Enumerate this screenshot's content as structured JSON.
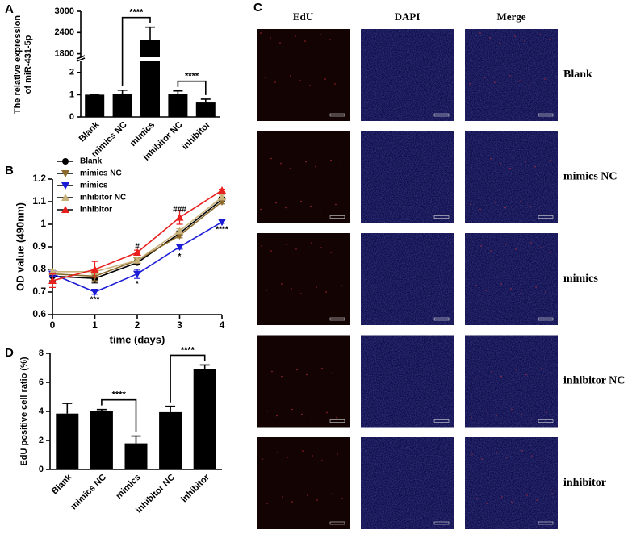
{
  "panels": [
    "A",
    "B",
    "C",
    "D"
  ],
  "chart_data": [
    {
      "type": "broken-bar",
      "ylabel": [
        "The relative expression",
        "of miR-431-5p"
      ],
      "categories": [
        "Blank",
        "mimics NC",
        "mimics",
        "inhibitor NC",
        "inhibitor"
      ],
      "values": [
        1,
        1.05,
        2200,
        1.05,
        0.65
      ],
      "errors": [
        0,
        0.15,
        350,
        0.12,
        0.15
      ],
      "color": "#000000",
      "y_segments": [
        [
          0,
          2.5
        ],
        [
          1700,
          3000
        ]
      ],
      "yticks": [
        0,
        1,
        2,
        1800,
        2400,
        3000
      ],
      "significance": [
        {
          "between": [
            "mimics NC",
            "mimics"
          ],
          "text": "****"
        },
        {
          "between": [
            "inhibitor NC",
            "inhibitor"
          ],
          "text": "****"
        }
      ]
    },
    {
      "type": "line",
      "xlabel": "time (days)",
      "ylabel": "OD value (490nm)",
      "x": [
        0,
        1,
        2,
        3,
        4
      ],
      "xlim": [
        0,
        4
      ],
      "xticks": [
        0,
        1,
        2,
        3,
        4
      ],
      "ylim": [
        0.6,
        1.2
      ],
      "yticks": [
        0.6,
        0.7,
        0.8,
        0.9,
        1.0,
        1.1,
        1.2
      ],
      "legend": "upper left",
      "series": [
        {
          "name": "Blank",
          "color": "#000000",
          "marker": "circle",
          "values": [
            0.77,
            0.76,
            0.83,
            0.96,
            1.11
          ],
          "errors": [
            0.02,
            0.02,
            0.01,
            0.01,
            0.01
          ]
        },
        {
          "name": "mimics NC",
          "color": "#8b6a2b",
          "marker": "triangle-down",
          "values": [
            0.78,
            0.77,
            0.84,
            0.95,
            1.1
          ],
          "errors": [
            0.01,
            0.02,
            0.01,
            0.01,
            0.01
          ]
        },
        {
          "name": "mimics",
          "color": "#1c1cd6",
          "marker": "triangle-down",
          "values": [
            0.78,
            0.7,
            0.78,
            0.9,
            1.01
          ],
          "errors": [
            0.01,
            0.01,
            0.02,
            0.01,
            0.005
          ]
        },
        {
          "name": "inhibitor NC",
          "color": "#c9b27a",
          "marker": "triangle-up",
          "values": [
            0.79,
            0.79,
            0.84,
            0.97,
            1.12
          ],
          "errors": [
            0.01,
            0.01,
            0.01,
            0.01,
            0.01
          ]
        },
        {
          "name": "inhibitor",
          "color": "#e8201e",
          "marker": "triangle-up",
          "values": [
            0.75,
            0.8,
            0.875,
            1.03,
            1.15
          ],
          "errors": [
            0.03,
            0.035,
            0.01,
            0.03,
            0.005
          ]
        }
      ],
      "annotations": [
        {
          "text": "***",
          "x": 1,
          "y": 0.665
        },
        {
          "text": "#",
          "x": 2,
          "y": 0.9
        },
        {
          "text": "*",
          "x": 2,
          "y": 0.735
        },
        {
          "text": "###",
          "x": 3,
          "y": 1.065
        },
        {
          "text": "*",
          "x": 3,
          "y": 0.855
        },
        {
          "text": "****",
          "x": 4,
          "y": 0.975
        }
      ]
    },
    {
      "type": "bar",
      "ylabel": "EdU positive cell ratio (%)",
      "categories": [
        "Blank",
        "mimics NC",
        "mimics",
        "inhibitor NC",
        "inhibitor"
      ],
      "values": [
        3.85,
        4.05,
        1.8,
        3.95,
        6.9
      ],
      "errors": [
        0.7,
        0.08,
        0.5,
        0.4,
        0.3
      ],
      "color": "#000000",
      "ylim": [
        0,
        8
      ],
      "yticks": [
        0,
        2,
        4,
        6,
        8
      ],
      "significance": [
        {
          "between": [
            "mimics NC",
            "mimics"
          ],
          "text": "****"
        },
        {
          "between": [
            "inhibitor NC",
            "inhibitor"
          ],
          "text": "****"
        }
      ]
    }
  ],
  "image_grid": {
    "columns": [
      "EdU",
      "DAPI",
      "Merge"
    ],
    "rows": [
      "Blank",
      "mimics NC",
      "mimics",
      "inhibitor NC",
      "inhibitor"
    ]
  }
}
